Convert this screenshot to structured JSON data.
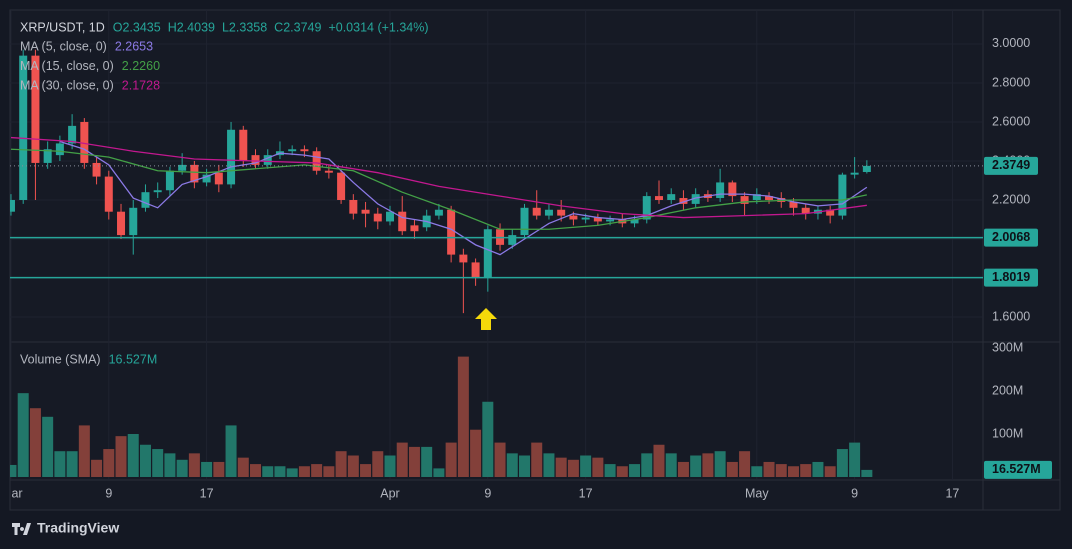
{
  "chart_data": [
    {
      "type": "candlestick",
      "title": "XRP/USDT, 1D",
      "quote": [
        "O2.3435",
        "H2.4039",
        "L2.3358",
        "C2.3749",
        "+0.0314 (+1.34%)"
      ],
      "x": [
        0,
        1,
        2,
        3,
        4,
        5,
        6,
        7,
        8,
        9,
        10,
        11,
        12,
        13,
        14,
        15,
        16,
        17,
        18,
        19,
        20,
        21,
        22,
        23,
        24,
        25,
        26,
        27,
        28,
        29,
        30,
        31,
        32,
        33,
        34,
        35,
        36,
        37,
        38,
        39,
        40,
        41,
        42,
        43,
        44,
        45,
        46,
        47,
        48,
        49,
        50,
        51,
        52,
        53,
        54,
        55,
        56,
        57,
        58,
        59,
        60,
        61,
        62,
        63,
        64,
        65,
        66,
        67,
        68,
        69,
        70
      ],
      "open": [
        2.14,
        2.2,
        2.94,
        2.39,
        2.43,
        2.49,
        2.6,
        2.39,
        2.32,
        2.14,
        2.02,
        2.16,
        2.24,
        2.25,
        2.35,
        2.38,
        2.29,
        2.34,
        2.28,
        2.56,
        2.43,
        2.38,
        2.43,
        2.45,
        2.46,
        2.45,
        2.35,
        2.34,
        2.2,
        2.15,
        2.13,
        2.09,
        2.14,
        2.07,
        2.06,
        2.12,
        2.15,
        1.92,
        1.88,
        1.8,
        2.05,
        1.97,
        2.02,
        2.16,
        2.12,
        2.15,
        2.12,
        2.1,
        2.11,
        2.09,
        2.1,
        2.08,
        2.1,
        2.22,
        2.2,
        2.21,
        2.18,
        2.23,
        2.21,
        2.29,
        2.22,
        2.2,
        2.22,
        2.21,
        2.19,
        2.16,
        2.13,
        2.15,
        2.12,
        2.33,
        2.3435
      ],
      "high": [
        2.23,
        2.97,
        2.97,
        2.5,
        2.53,
        2.64,
        2.62,
        2.42,
        2.35,
        2.18,
        2.2,
        2.28,
        2.29,
        2.37,
        2.44,
        2.4,
        2.36,
        2.38,
        2.6,
        2.58,
        2.46,
        2.46,
        2.5,
        2.48,
        2.48,
        2.47,
        2.38,
        2.36,
        2.23,
        2.19,
        2.16,
        2.17,
        2.22,
        2.1,
        2.15,
        2.18,
        2.17,
        1.95,
        1.9,
        2.07,
        2.08,
        2.05,
        2.18,
        2.25,
        2.18,
        2.2,
        2.14,
        2.13,
        2.13,
        2.12,
        2.13,
        2.12,
        2.24,
        2.3,
        2.26,
        2.25,
        2.26,
        2.25,
        2.36,
        2.3,
        2.24,
        2.26,
        2.24,
        2.24,
        2.21,
        2.18,
        2.17,
        2.17,
        2.34,
        2.42,
        2.4039
      ],
      "low": [
        2.12,
        2.18,
        2.2,
        2.36,
        2.4,
        2.46,
        2.36,
        2.28,
        2.1,
        2.0,
        1.92,
        2.14,
        2.21,
        2.22,
        2.33,
        2.26,
        2.27,
        2.24,
        2.26,
        2.37,
        2.36,
        2.36,
        2.41,
        2.43,
        2.42,
        2.33,
        2.31,
        2.18,
        2.1,
        2.06,
        2.05,
        2.07,
        2.02,
        2.0,
        2.04,
        2.1,
        1.88,
        1.62,
        1.76,
        1.73,
        1.94,
        1.95,
        2.0,
        2.1,
        2.1,
        2.09,
        2.07,
        2.08,
        2.07,
        2.07,
        2.06,
        2.06,
        2.08,
        2.18,
        2.18,
        2.15,
        2.16,
        2.19,
        2.19,
        2.19,
        2.12,
        2.18,
        2.18,
        2.16,
        2.12,
        2.1,
        2.1,
        2.08,
        2.1,
        2.31,
        2.3358
      ],
      "close": [
        2.2,
        2.94,
        2.39,
        2.46,
        2.49,
        2.58,
        2.39,
        2.32,
        2.14,
        2.02,
        2.16,
        2.24,
        2.25,
        2.35,
        2.38,
        2.29,
        2.33,
        2.28,
        2.56,
        2.4,
        2.38,
        2.43,
        2.45,
        2.46,
        2.45,
        2.35,
        2.34,
        2.2,
        2.13,
        2.13,
        2.09,
        2.14,
        2.04,
        2.04,
        2.12,
        2.15,
        1.92,
        1.88,
        1.8,
        2.05,
        1.97,
        2.02,
        2.16,
        2.12,
        2.15,
        2.12,
        2.1,
        2.11,
        2.09,
        2.1,
        2.08,
        2.1,
        2.22,
        2.2,
        2.23,
        2.18,
        2.23,
        2.21,
        2.29,
        2.22,
        2.18,
        2.23,
        2.2,
        2.19,
        2.16,
        2.13,
        2.15,
        2.12,
        2.33,
        2.34,
        2.3749
      ],
      "up_color": "#26a69a",
      "down_color": "#ef5350",
      "xlim": [
        -0.08,
        79.5
      ],
      "xticks": [
        {
          "value": 0,
          "label": "ar"
        },
        {
          "value": 8,
          "label": "9"
        },
        {
          "value": 16,
          "label": "17"
        },
        {
          "value": 31,
          "label": "Apr"
        },
        {
          "value": 39,
          "label": "9"
        },
        {
          "value": 47,
          "label": "17"
        },
        {
          "value": 61,
          "label": "May"
        },
        {
          "value": 69,
          "label": "9"
        },
        {
          "value": 77,
          "label": "17"
        }
      ],
      "ylim": [
        1.472,
        3.174
      ],
      "yticks": [
        {
          "value": 1.6,
          "label": "1.6000"
        },
        {
          "value": 1.8,
          "label": "1.8000"
        },
        {
          "value": 2.0,
          "label": "2.0000"
        },
        {
          "value": 2.2,
          "label": "2.2000"
        },
        {
          "value": 2.4,
          "label": "2.4000"
        },
        {
          "value": 2.6,
          "label": "2.6000"
        },
        {
          "value": 2.8,
          "label": "2.8000"
        },
        {
          "value": 3.0,
          "label": "3.0000"
        }
      ],
      "grid": true,
      "series": [
        {
          "name": "MA (5, close, 0)",
          "color": "#8c7ae6",
          "last_label": "2.2653",
          "x": [
            4,
            6,
            8,
            10,
            12,
            14,
            16,
            18,
            20,
            22,
            24,
            26,
            28,
            30,
            32,
            34,
            36,
            38,
            40,
            42,
            44,
            46,
            48,
            50,
            52,
            54,
            56,
            58,
            60,
            62,
            64,
            66,
            68,
            70
          ],
          "values": [
            2.5,
            2.46,
            2.38,
            2.21,
            2.16,
            2.28,
            2.32,
            2.37,
            2.39,
            2.44,
            2.43,
            2.41,
            2.29,
            2.18,
            2.11,
            2.09,
            2.05,
            1.97,
            1.92,
            2.0,
            2.08,
            2.13,
            2.11,
            2.1,
            2.12,
            2.17,
            2.21,
            2.23,
            2.23,
            2.22,
            2.19,
            2.17,
            2.18,
            2.2653
          ]
        },
        {
          "name": "MA (15, close, 0)",
          "color": "#43a047",
          "last_label": "2.2260",
          "x": [
            0,
            4,
            8,
            12,
            16,
            20,
            24,
            28,
            32,
            36,
            40,
            44,
            48,
            52,
            56,
            60,
            64,
            68,
            70
          ],
          "values": [
            2.46,
            2.45,
            2.42,
            2.35,
            2.34,
            2.36,
            2.38,
            2.35,
            2.24,
            2.15,
            2.05,
            2.05,
            2.07,
            2.11,
            2.16,
            2.19,
            2.2,
            2.2,
            2.226
          ]
        },
        {
          "name": "MA (30, close, 0)",
          "color": "#c2188f",
          "last_label": "2.1728",
          "x": [
            0,
            5,
            10,
            15,
            20,
            25,
            30,
            35,
            40,
            45,
            50,
            55,
            60,
            65,
            70
          ],
          "values": [
            2.52,
            2.5,
            2.45,
            2.41,
            2.4,
            2.39,
            2.34,
            2.27,
            2.22,
            2.17,
            2.13,
            2.11,
            2.12,
            2.13,
            2.1728
          ]
        }
      ],
      "levels": [
        {
          "value": 2.0068,
          "label": "2.0068"
        },
        {
          "value": 1.8019,
          "label": "1.8019"
        }
      ],
      "level_color": "#26a69a",
      "last_price": {
        "value": 2.3749,
        "label": "2.3749"
      }
    },
    {
      "type": "bar",
      "title": "Volume (SMA)",
      "title_value": "16.527M",
      "x": [
        0,
        1,
        2,
        3,
        4,
        5,
        6,
        7,
        8,
        9,
        10,
        11,
        12,
        13,
        14,
        15,
        16,
        17,
        18,
        19,
        20,
        21,
        22,
        23,
        24,
        25,
        26,
        27,
        28,
        29,
        30,
        31,
        32,
        33,
        34,
        35,
        36,
        37,
        38,
        39,
        40,
        41,
        42,
        43,
        44,
        45,
        46,
        47,
        48,
        49,
        50,
        51,
        52,
        53,
        54,
        55,
        56,
        57,
        58,
        59,
        60,
        61,
        62,
        63,
        64,
        65,
        66,
        67,
        68,
        69,
        70
      ],
      "values": [
        28,
        195,
        160,
        140,
        60,
        60,
        120,
        40,
        65,
        95,
        100,
        75,
        65,
        55,
        40,
        55,
        35,
        35,
        120,
        45,
        30,
        25,
        25,
        20,
        25,
        30,
        25,
        60,
        50,
        30,
        60,
        50,
        80,
        70,
        70,
        20,
        80,
        280,
        110,
        175,
        80,
        55,
        50,
        80,
        55,
        45,
        40,
        50,
        45,
        30,
        25,
        30,
        55,
        75,
        55,
        35,
        50,
        55,
        60,
        35,
        60,
        25,
        35,
        30,
        25,
        30,
        35,
        25,
        65,
        80,
        16.527
      ],
      "up_color": "#22776a",
      "down_color": "#83403a",
      "xlim": [
        -0.08,
        79.5
      ],
      "ylim": [
        -7,
        314
      ],
      "yticks": [
        {
          "value": 100,
          "label": "100M"
        },
        {
          "value": 200,
          "label": "200M"
        },
        {
          "value": 300,
          "label": "300M"
        }
      ],
      "last_value": {
        "value": 16.527,
        "label": "16.527M"
      }
    }
  ],
  "footer": {
    "brand": "TradingView"
  }
}
